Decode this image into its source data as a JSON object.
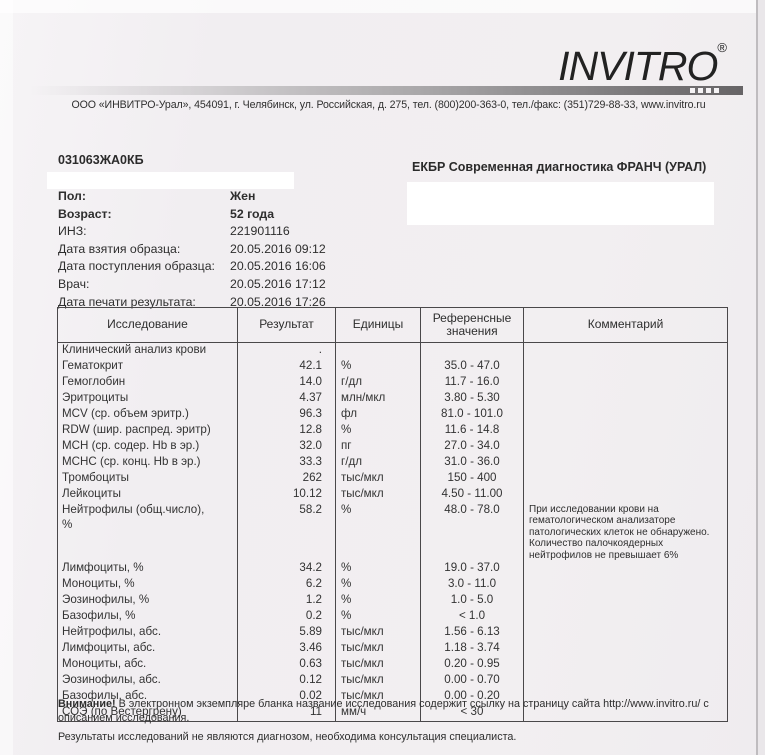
{
  "header": {
    "logo_text": "INVITRO",
    "logo_registered": "®",
    "address": "ООО «ИНВИТРО-Урал», 454091, г. Челябинск, ул. Российская, д. 275, тел. (800)200-363-0, тел./факс: (351)729-88-33, www.invitro.ru"
  },
  "patient": {
    "code": "031063ЖА0КБ",
    "office_title": "ЕКБР Современная диагностика ФРАНЧ (УРАЛ)",
    "info": [
      {
        "label": "Пол:",
        "value": "Жен",
        "bold": true
      },
      {
        "label": "Возраст:",
        "value": "52 года",
        "bold": true
      },
      {
        "label": "ИНЗ:",
        "value": "221901116",
        "bold": false
      },
      {
        "label": "Дата взятия образца:",
        "value": "20.05.2016 09:12",
        "bold": false
      },
      {
        "label": "Дата поступления образца:",
        "value": "20.05.2016 16:06",
        "bold": false
      },
      {
        "label": "Врач:",
        "value": "20.05.2016 17:12",
        "bold": false
      },
      {
        "label": "Дата печати результата:",
        "value": "20.05.2016 17:26",
        "bold": false
      }
    ]
  },
  "results_table": {
    "columns": [
      "Исследование",
      "Результат",
      "Единицы",
      "Референсные значения",
      "Комментарий"
    ],
    "rows": [
      {
        "name": "Клинический анализ крови",
        "result": ".",
        "units": "",
        "reference": "",
        "comment": ""
      },
      {
        "name": "Гематокрит",
        "result": "42.1",
        "units": "%",
        "reference": "35.0 - 47.0",
        "comment": ""
      },
      {
        "name": "Гемоглобин",
        "result": "14.0",
        "units": "г/дл",
        "reference": "11.7 - 16.0",
        "comment": ""
      },
      {
        "name": "Эритроциты",
        "result": "4.37",
        "units": "млн/мкл",
        "reference": "3.80 - 5.30",
        "comment": ""
      },
      {
        "name": "MCV (ср. объем эритр.)",
        "result": "96.3",
        "units": "фл",
        "reference": "81.0 - 101.0",
        "comment": ""
      },
      {
        "name": "RDW (шир. распред. эритр)",
        "result": "12.8",
        "units": "%",
        "reference": "11.6 - 14.8",
        "comment": ""
      },
      {
        "name": "MCH (ср. содер. Hb в эр.)",
        "result": "32.0",
        "units": "пг",
        "reference": "27.0 - 34.0",
        "comment": ""
      },
      {
        "name": "MCHC (ср. конц. Hb в эр.)",
        "result": "33.3",
        "units": "г/дл",
        "reference": "31.0 - 36.0",
        "comment": ""
      },
      {
        "name": "Тромбоциты",
        "result": "262",
        "units": "тыс/мкл",
        "reference": "150 - 400",
        "comment": ""
      },
      {
        "name": "Лейкоциты",
        "result": "10.12",
        "units": "тыс/мкл",
        "reference": "4.50 - 11.00",
        "comment": ""
      },
      {
        "name": "Нейтрофилы (общ.число),\n%",
        "result": "58.2",
        "units": "%",
        "reference": "48.0 - 78.0",
        "comment": "При исследовании крови на гематологическом анализаторе патологических клеток не обнаружено. Количество палочкоядерных нейтрофилов не превышает 6%"
      },
      {
        "name": "Лимфоциты, %",
        "result": "34.2",
        "units": "%",
        "reference": "19.0 - 37.0",
        "comment": ""
      },
      {
        "name": "Моноциты, %",
        "result": "6.2",
        "units": "%",
        "reference": "3.0 - 11.0",
        "comment": ""
      },
      {
        "name": "Эозинофилы, %",
        "result": "1.2",
        "units": "%",
        "reference": "1.0 - 5.0",
        "comment": ""
      },
      {
        "name": "Базофилы, %",
        "result": "0.2",
        "units": "%",
        "reference": "< 1.0",
        "comment": ""
      },
      {
        "name": "Нейтрофилы, абс.",
        "result": "5.89",
        "units": "тыс/мкл",
        "reference": "1.56 - 6.13",
        "comment": ""
      },
      {
        "name": "Лимфоциты, абс.",
        "result": "3.46",
        "units": "тыс/мкл",
        "reference": "1.18 - 3.74",
        "comment": ""
      },
      {
        "name": "Моноциты, абс.",
        "result": "0.63",
        "units": "тыс/мкл",
        "reference": "0.20 - 0.95",
        "comment": ""
      },
      {
        "name": "Эозинофилы, абс.",
        "result": "0.12",
        "units": "тыс/мкл",
        "reference": "0.00 - 0.70",
        "comment": ""
      },
      {
        "name": "Базофилы, абс.",
        "result": "0.02",
        "units": "тыс/мкл",
        "reference": "0.00 - 0.20",
        "comment": ""
      },
      {
        "name": "СОЭ (по Вестергрену)",
        "result": "11",
        "units": "мм/ч",
        "reference": "< 30",
        "comment": ""
      }
    ]
  },
  "footer": {
    "warning_prefix": "Внимание!",
    "warning_text": " В электронном экземпляре бланка название исследования содержит ссылку на страницу сайта http://www.invitro.ru/ с описанием исследования.",
    "disclaimer": "Результаты исследований не являются диагнозом, необходима консультация специалиста."
  },
  "colors": {
    "paper": "#f2eff1",
    "text": "#2e2e2e",
    "table_border": "#4a484a",
    "bar_dark": "#666466",
    "redaction": "#ffffff"
  }
}
